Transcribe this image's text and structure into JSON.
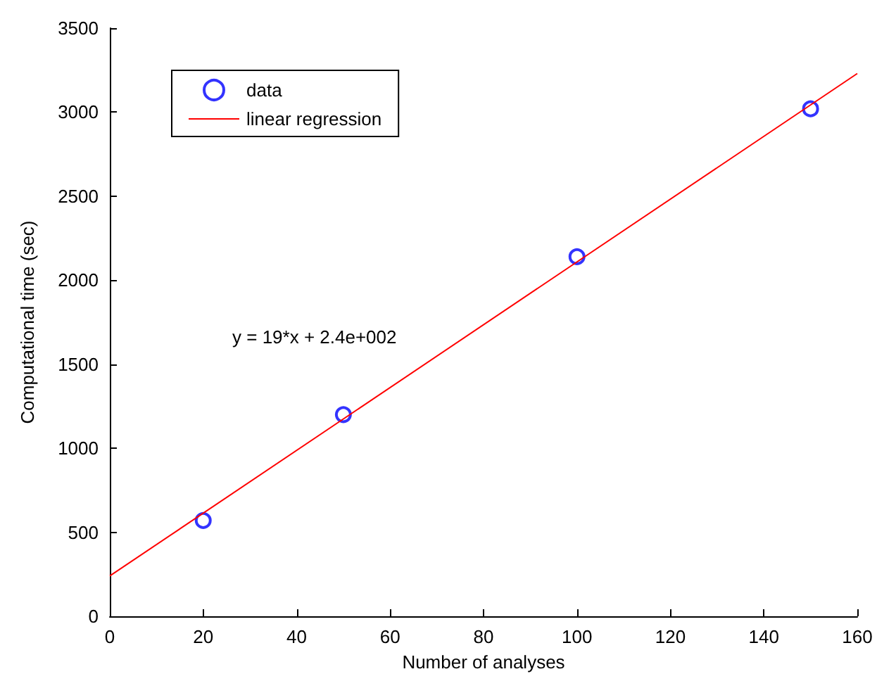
{
  "chart_data": {
    "type": "scatter",
    "xlabel": "Number of analyses",
    "ylabel": "Computational time (sec)",
    "xlim": [
      0,
      160
    ],
    "xticks": [
      0,
      20,
      40,
      60,
      80,
      100,
      120,
      140,
      160
    ],
    "ylim": [
      0,
      3500
    ],
    "yticks": [
      0,
      500,
      1000,
      1500,
      2000,
      2500,
      3000,
      3500
    ],
    "series": [
      {
        "name": "data",
        "color": "#0000ff",
        "marker": "circle",
        "x": [
          20,
          50,
          100,
          150
        ],
        "values": [
          570,
          1200,
          2140,
          3020
        ]
      },
      {
        "name": "linear regression",
        "type": "line",
        "color": "#ff0000",
        "marker": "none",
        "x": [
          0,
          160
        ],
        "values": [
          240,
          3230
        ]
      }
    ],
    "annotations": [
      "y = 19*x + 2.4e+002"
    ],
    "grid": false,
    "legend": "top left"
  }
}
